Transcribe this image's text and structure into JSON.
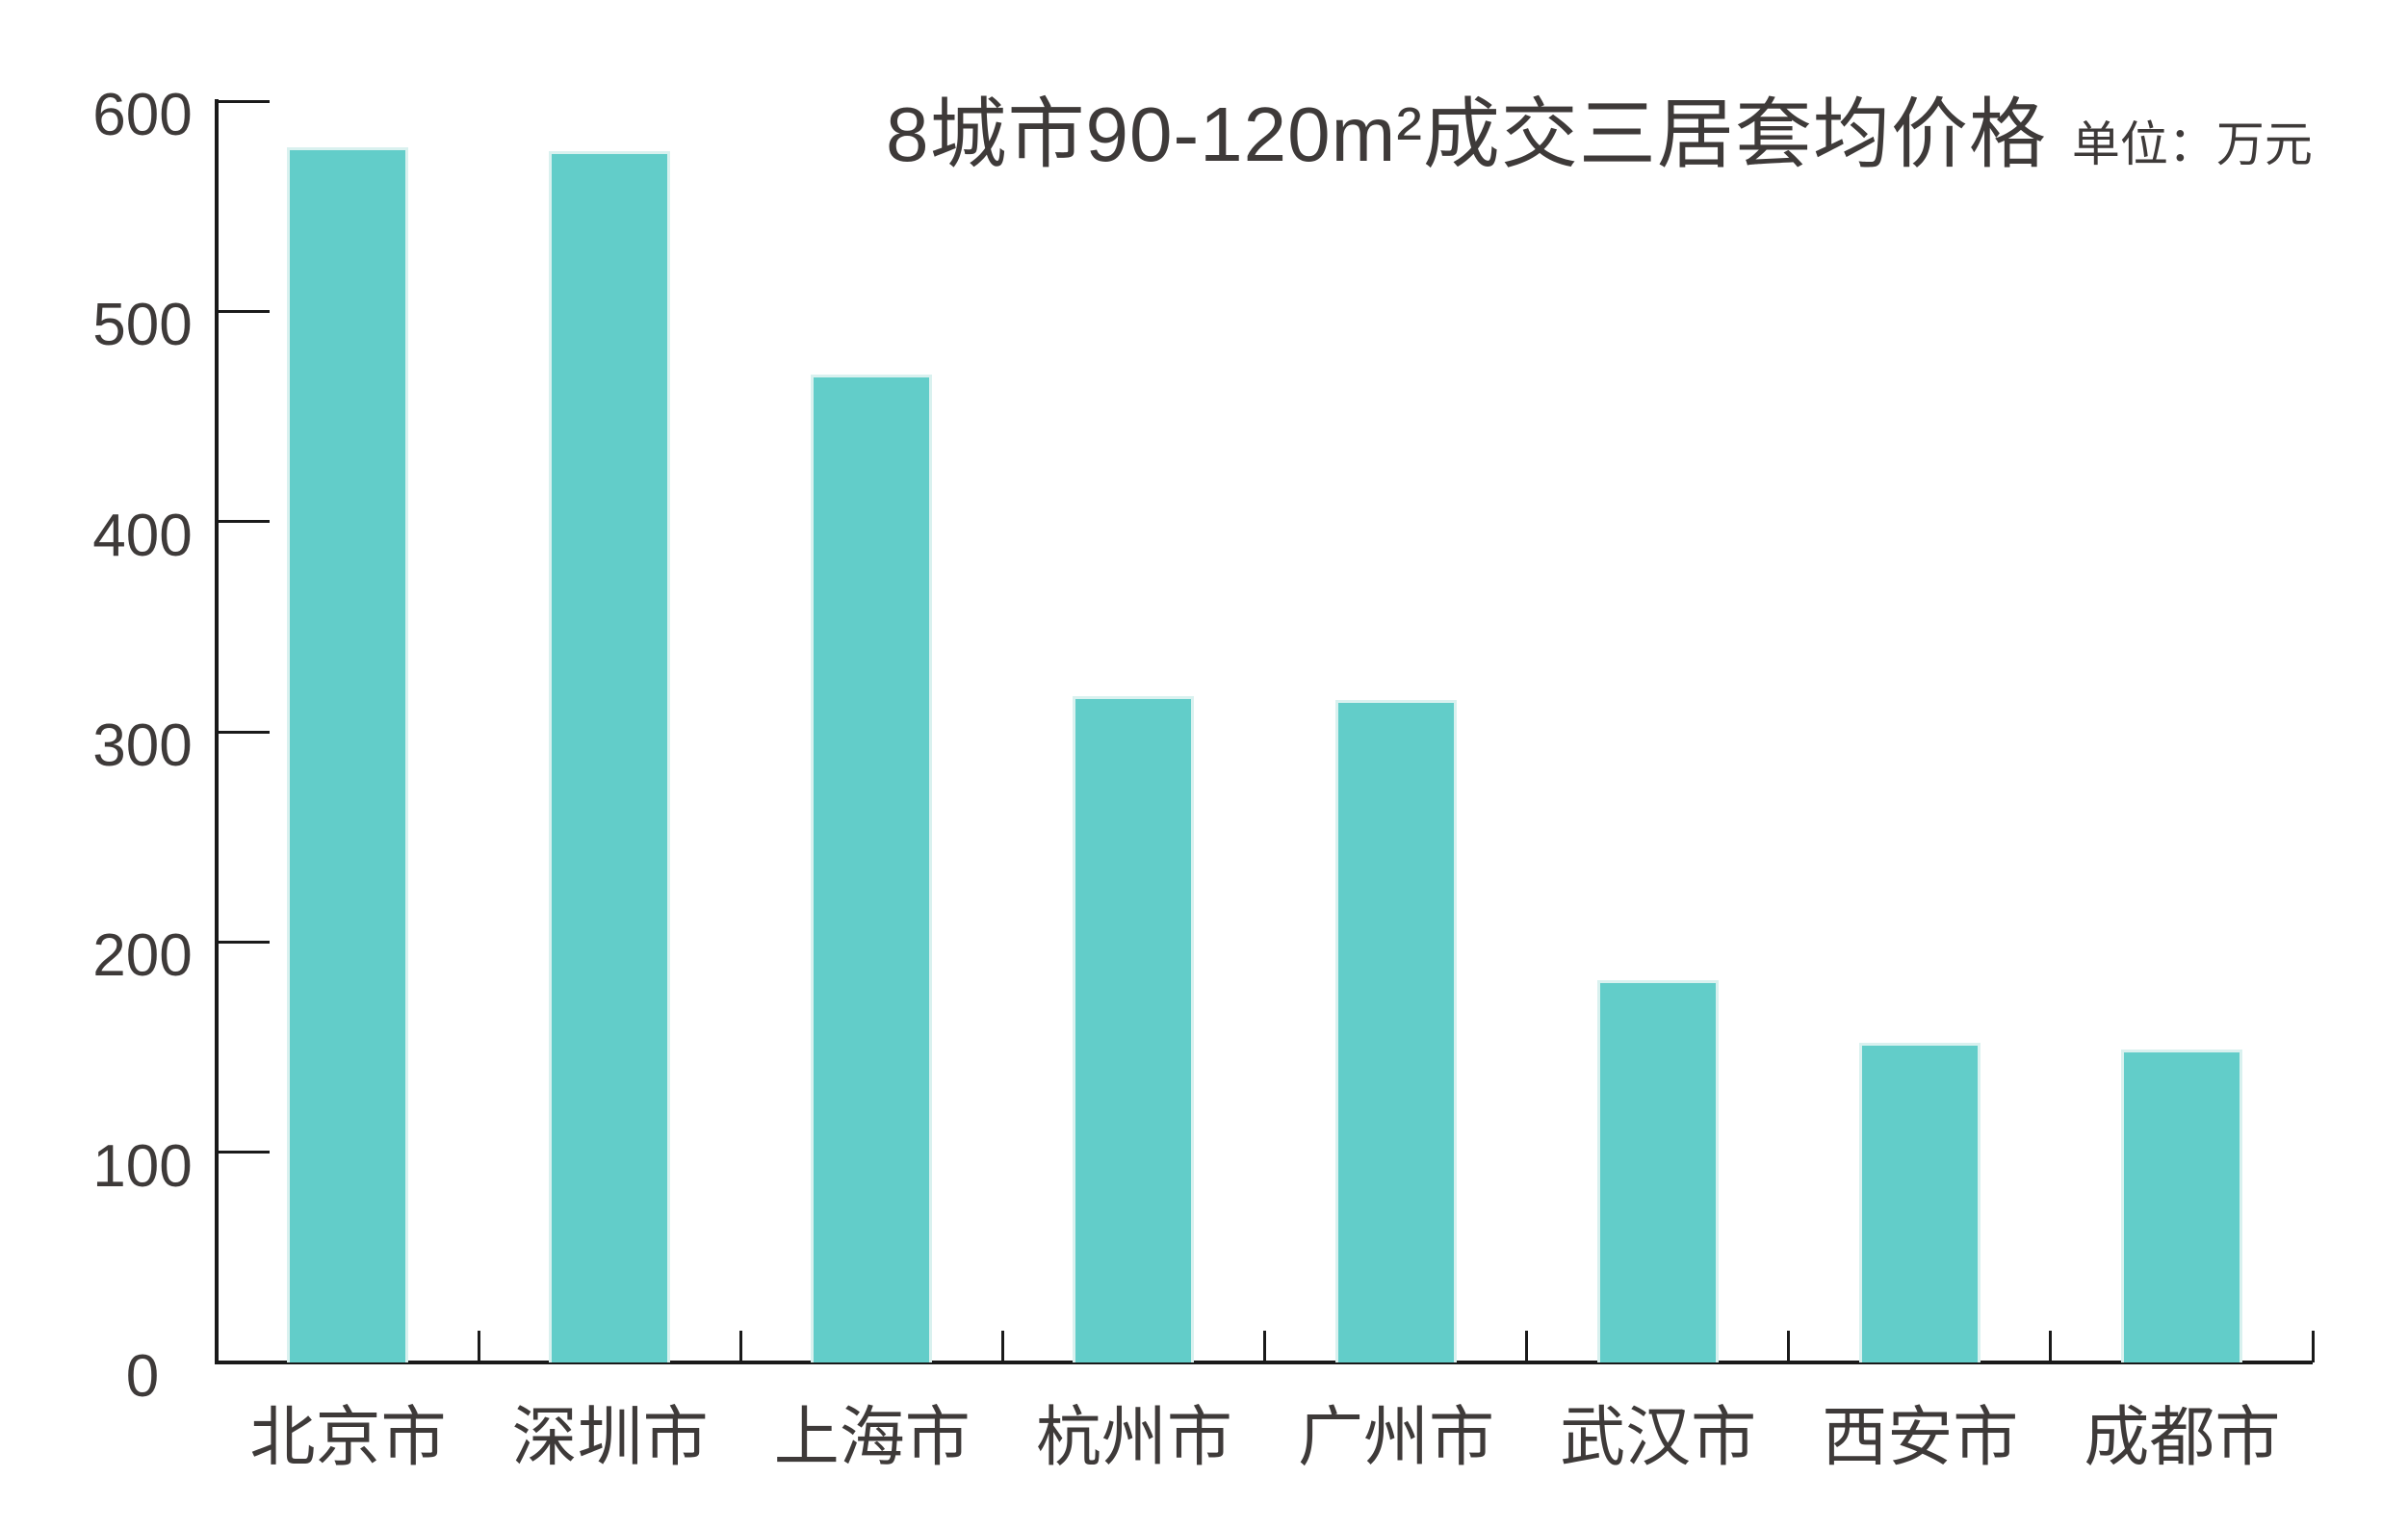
{
  "chart": {
    "title": "8城市90-120m²成交三居套均价格",
    "unit_label": "单位：万元",
    "colors": {
      "bar": "#62cdc9",
      "bar_edge": "#d9f1ef",
      "text": "#3e3a39",
      "axis": "#1a1a1a"
    }
  },
  "chart_data": {
    "type": "bar",
    "title": "8城市90-120m²成交三居套均价格",
    "unit": "万元",
    "categories": [
      "北京市",
      "深圳市",
      "上海市",
      "杭州市",
      "广州市",
      "武汉市",
      "西安市",
      "成都市"
    ],
    "values": [
      578,
      576,
      470,
      317,
      315,
      182,
      152,
      149
    ],
    "xlabel": "",
    "ylabel": "",
    "ylim": [
      0,
      600
    ],
    "yticks": [
      0,
      100,
      200,
      300,
      400,
      500,
      600
    ],
    "grid": false,
    "legend": false,
    "bar_color": "#62cdc9"
  }
}
